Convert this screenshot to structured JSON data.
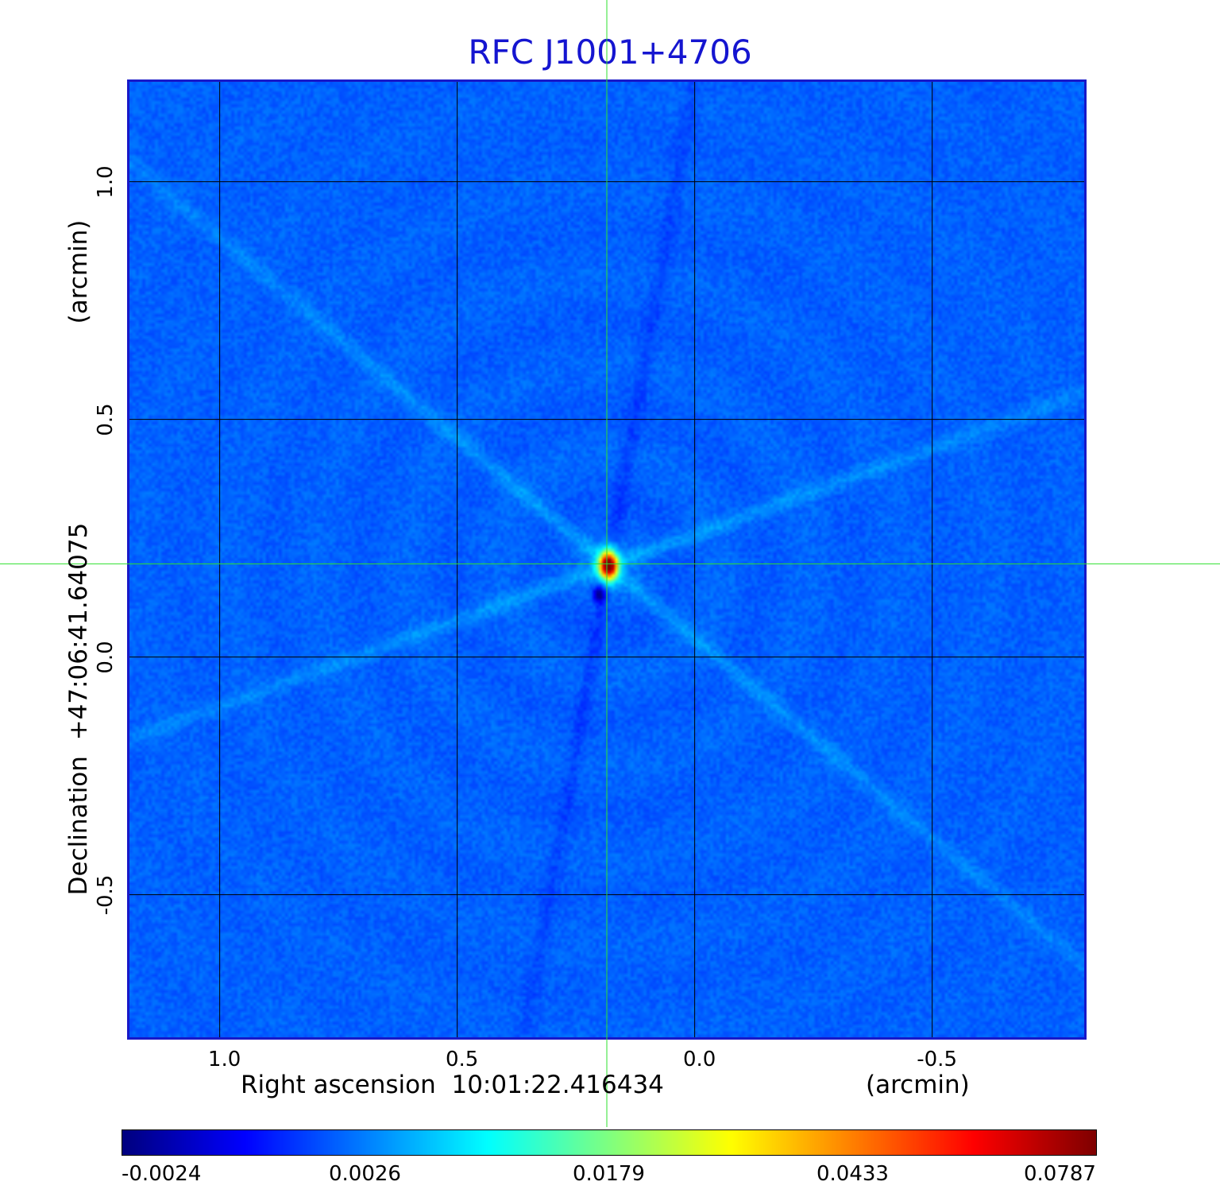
{
  "title": "RFC J1001+4706",
  "chart_data": {
    "type": "heatmap",
    "title": "RFC J1001+4706",
    "xlabel": "Right ascension  10:01:22.416434",
    "xlabel_unit": "(arcmin)",
    "ylabel": "Declination  +47:06:41.64075",
    "ylabel_unit": "(arcmin)",
    "x_ticks": [
      "1.0",
      "0.5",
      "0.0",
      "-0.5"
    ],
    "y_ticks": [
      "1.0",
      "0.5",
      "0.0",
      "-0.5"
    ],
    "x_tick_values": [
      1.0,
      0.5,
      0.0,
      -0.5
    ],
    "y_tick_values": [
      1.0,
      0.5,
      0.0,
      -0.5
    ],
    "xlim": [
      1.19,
      -0.82
    ],
    "ylim": [
      -0.8,
      1.21
    ],
    "grid": true,
    "crosshair": {
      "x": 0.185,
      "y": 0.196
    },
    "peak": {
      "x": 0.185,
      "y": 0.196,
      "value": 0.0787
    },
    "colorbar": {
      "ticks": [
        "-0.0024",
        "0.0026",
        "0.0179",
        "0.0433",
        "0.0787"
      ],
      "values": [
        -0.0024,
        0.0026,
        0.0179,
        0.0433,
        0.0787
      ],
      "colormap": "jet"
    }
  }
}
